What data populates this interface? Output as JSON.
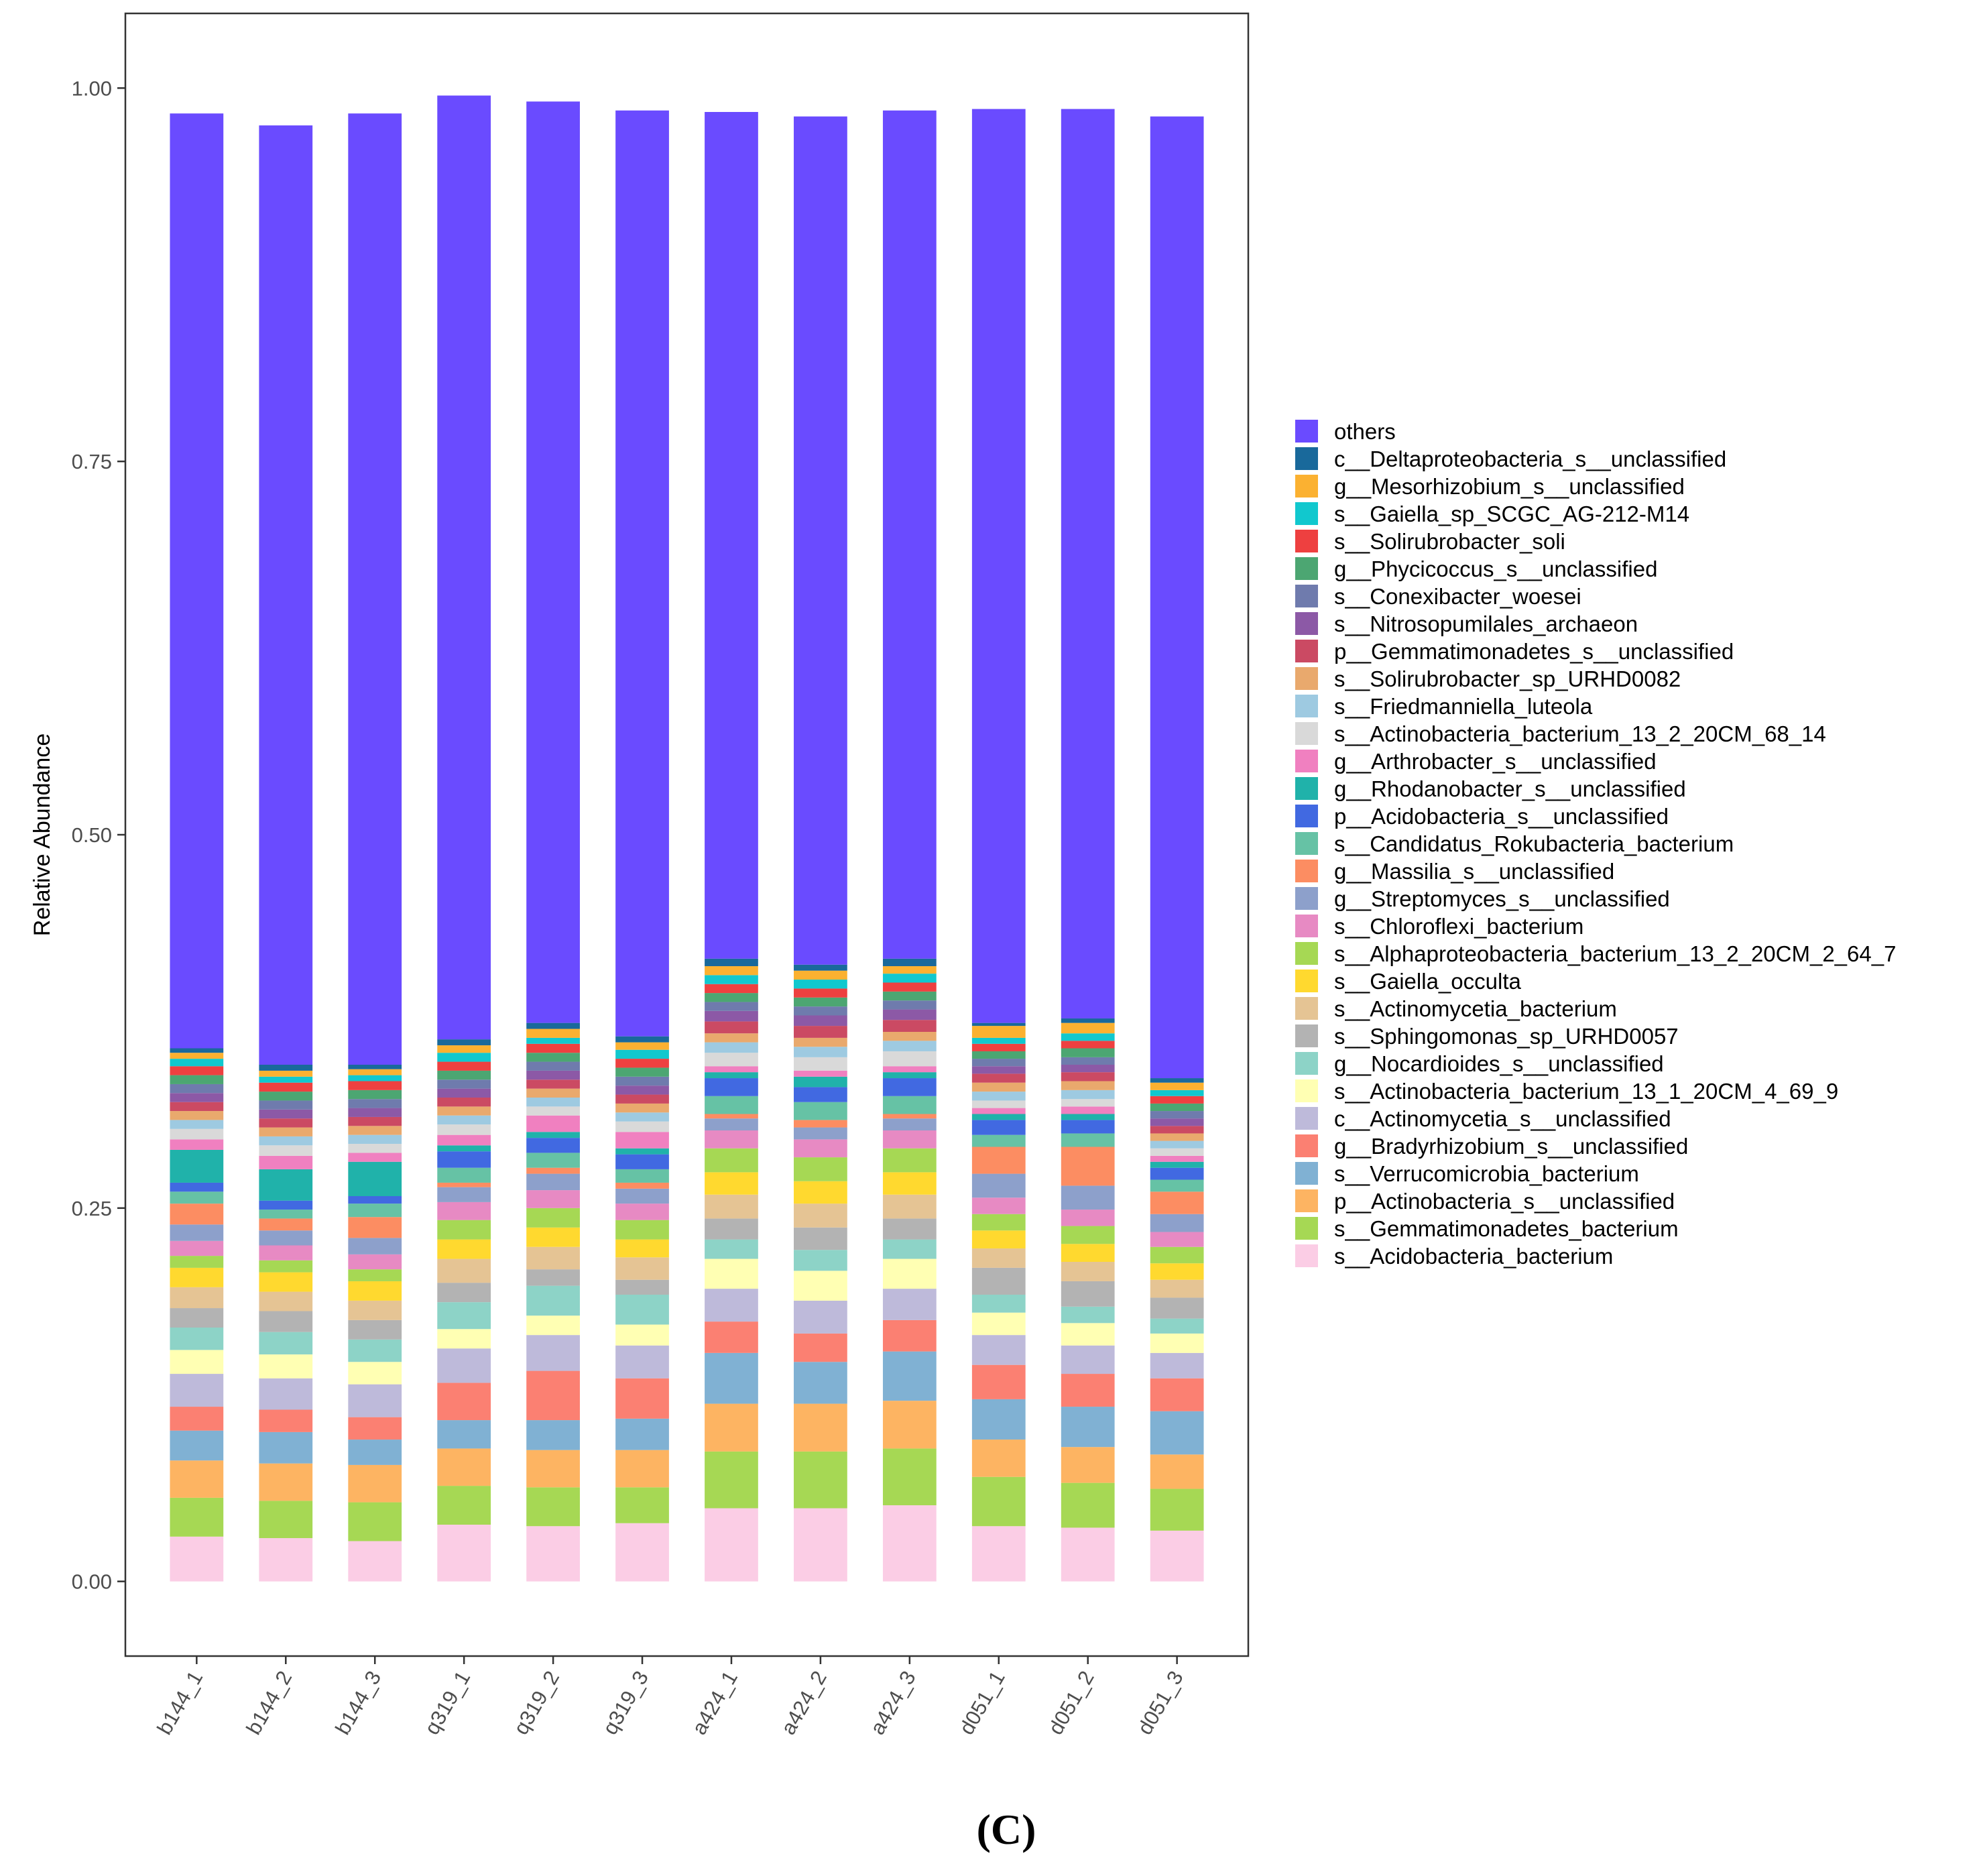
{
  "chart_data": {
    "type": "bar",
    "stacked": true,
    "ylabel": "Relative Abundance",
    "ylim": [
      -0.05,
      1.05
    ],
    "yticks": [
      "0.00",
      "0.25",
      "0.50",
      "0.75",
      "1.00"
    ],
    "grid": false,
    "legend_position": "right",
    "caption": "(C)",
    "categories": [
      "b144_1",
      "b144_2",
      "b144_3",
      "q319_1",
      "q319_2",
      "q319_3",
      "a424_1",
      "a424_2",
      "a424_3",
      "d051_1",
      "d051_2",
      "d051_3"
    ],
    "series": [
      {
        "name": "s__Acidobacteria_bacterium",
        "color": "#FBCDE5",
        "values": [
          0.03,
          0.029,
          0.027,
          0.038,
          0.037,
          0.039,
          0.049,
          0.049,
          0.051,
          0.037,
          0.036,
          0.034
        ]
      },
      {
        "name": "s__Gemmatimonadetes_bacterium",
        "color": "#A6D854",
        "values": [
          0.026,
          0.025,
          0.026,
          0.026,
          0.026,
          0.024,
          0.038,
          0.038,
          0.038,
          0.033,
          0.03,
          0.028
        ]
      },
      {
        "name": "p__Actinobacteria_s__unclassified",
        "color": "#FDB462",
        "values": [
          0.025,
          0.025,
          0.025,
          0.025,
          0.025,
          0.025,
          0.032,
          0.032,
          0.032,
          0.025,
          0.024,
          0.023
        ]
      },
      {
        "name": "s__Verrucomicrobia_bacterium",
        "color": "#80B1D3",
        "values": [
          0.02,
          0.021,
          0.017,
          0.019,
          0.02,
          0.021,
          0.034,
          0.028,
          0.033,
          0.027,
          0.027,
          0.029
        ]
      },
      {
        "name": "g__Bradyrhizobium_s__unclassified",
        "color": "#FB8072",
        "values": [
          0.016,
          0.015,
          0.015,
          0.025,
          0.033,
          0.027,
          0.021,
          0.019,
          0.021,
          0.023,
          0.022,
          0.022
        ]
      },
      {
        "name": "c__Actinomycetia_s__unclassified",
        "color": "#BEBADA",
        "values": [
          0.022,
          0.021,
          0.022,
          0.023,
          0.024,
          0.022,
          0.022,
          0.022,
          0.021,
          0.02,
          0.019,
          0.017
        ]
      },
      {
        "name": "s__Actinobacteria_bacterium_13_1_20CM_4_69_9",
        "color": "#FFFFB3",
        "values": [
          0.016,
          0.016,
          0.015,
          0.013,
          0.013,
          0.014,
          0.02,
          0.02,
          0.02,
          0.015,
          0.015,
          0.013
        ]
      },
      {
        "name": "g__Nocardioides_s__unclassified",
        "color": "#8DD3C7",
        "values": [
          0.015,
          0.015,
          0.015,
          0.018,
          0.02,
          0.02,
          0.013,
          0.014,
          0.013,
          0.012,
          0.011,
          0.01
        ]
      },
      {
        "name": "s__Sphingomonas_sp_URHD0057",
        "color": "#B3B3B3",
        "values": [
          0.013,
          0.014,
          0.013,
          0.013,
          0.011,
          0.01,
          0.014,
          0.015,
          0.014,
          0.018,
          0.017,
          0.014
        ]
      },
      {
        "name": "s__Actinomycetia_bacterium",
        "color": "#E5C494",
        "values": [
          0.014,
          0.013,
          0.013,
          0.016,
          0.015,
          0.015,
          0.016,
          0.016,
          0.016,
          0.013,
          0.013,
          0.012
        ]
      },
      {
        "name": "s__Gaiella_occulta",
        "color": "#FFD92F",
        "values": [
          0.013,
          0.013,
          0.013,
          0.013,
          0.013,
          0.012,
          0.015,
          0.015,
          0.015,
          0.012,
          0.012,
          0.011
        ]
      },
      {
        "name": "s__Alphaproteobacteria_bacterium_13_2_20CM_2_64_7",
        "color": "#A6D854",
        "values": [
          0.008,
          0.008,
          0.008,
          0.013,
          0.013,
          0.013,
          0.016,
          0.016,
          0.016,
          0.011,
          0.012,
          0.011
        ]
      },
      {
        "name": "s__Chloroflexi_bacterium",
        "color": "#E78AC3",
        "values": [
          0.01,
          0.01,
          0.01,
          0.012,
          0.012,
          0.011,
          0.012,
          0.012,
          0.012,
          0.011,
          0.011,
          0.01
        ]
      },
      {
        "name": "g__Streptomyces_s__unclassified",
        "color": "#8DA0CB",
        "values": [
          0.011,
          0.01,
          0.011,
          0.01,
          0.011,
          0.01,
          0.008,
          0.008,
          0.008,
          0.016,
          0.016,
          0.012
        ]
      },
      {
        "name": "g__Massilia_s__unclassified",
        "color": "#FC8D62",
        "values": [
          0.014,
          0.008,
          0.014,
          0.003,
          0.004,
          0.004,
          0.003,
          0.005,
          0.003,
          0.018,
          0.026,
          0.015
        ]
      },
      {
        "name": "s__Candidatus_Rokubacteria_bacterium",
        "color": "#66C2A5",
        "values": [
          0.008,
          0.006,
          0.009,
          0.01,
          0.01,
          0.009,
          0.012,
          0.012,
          0.012,
          0.008,
          0.009,
          0.008
        ]
      },
      {
        "name": "p__Acidobacteria_s__unclassified",
        "color": "#4169E1",
        "values": [
          0.006,
          0.006,
          0.005,
          0.011,
          0.01,
          0.01,
          0.012,
          0.01,
          0.012,
          0.01,
          0.009,
          0.008
        ]
      },
      {
        "name": "g__Rhodanobacter_s__unclassified",
        "color": "#20B2AA",
        "values": [
          0.022,
          0.021,
          0.023,
          0.004,
          0.004,
          0.004,
          0.004,
          0.007,
          0.004,
          0.004,
          0.004,
          0.004
        ]
      },
      {
        "name": "g__Arthrobacter_s__unclassified",
        "color": "#F080C0",
        "values": [
          0.007,
          0.009,
          0.006,
          0.007,
          0.011,
          0.011,
          0.004,
          0.004,
          0.004,
          0.004,
          0.005,
          0.004
        ]
      },
      {
        "name": "s__Actinobacteria_bacterium_13_2_20CM_68_14",
        "color": "#D9D9D9",
        "values": [
          0.007,
          0.007,
          0.006,
          0.007,
          0.006,
          0.007,
          0.009,
          0.009,
          0.01,
          0.005,
          0.005,
          0.005
        ]
      },
      {
        "name": "s__Friedmanniella_luteola",
        "color": "#9ECAE1",
        "values": [
          0.006,
          0.006,
          0.006,
          0.006,
          0.006,
          0.006,
          0.007,
          0.007,
          0.007,
          0.006,
          0.006,
          0.005
        ]
      },
      {
        "name": "s__Solirubrobacter_sp_URHD0082",
        "color": "#E9A96D",
        "values": [
          0.006,
          0.006,
          0.006,
          0.006,
          0.006,
          0.006,
          0.006,
          0.006,
          0.006,
          0.006,
          0.006,
          0.005
        ]
      },
      {
        "name": "p__Gemmatimonadetes_s__unclassified",
        "color": "#CB4A63",
        "values": [
          0.006,
          0.006,
          0.006,
          0.006,
          0.006,
          0.006,
          0.008,
          0.008,
          0.008,
          0.006,
          0.006,
          0.005
        ]
      },
      {
        "name": "s__Nitrosopumilales_archaeon",
        "color": "#8C59A6",
        "values": [
          0.006,
          0.006,
          0.006,
          0.006,
          0.006,
          0.006,
          0.007,
          0.007,
          0.007,
          0.005,
          0.005,
          0.005
        ]
      },
      {
        "name": "s__Conexibacter_woesei",
        "color": "#6F7BAD",
        "values": [
          0.006,
          0.006,
          0.006,
          0.006,
          0.006,
          0.006,
          0.006,
          0.006,
          0.006,
          0.005,
          0.005,
          0.005
        ]
      },
      {
        "name": "g__Phycicoccus_s__unclassified",
        "color": "#4CA672",
        "values": [
          0.006,
          0.006,
          0.006,
          0.006,
          0.006,
          0.006,
          0.006,
          0.006,
          0.006,
          0.005,
          0.006,
          0.005
        ]
      },
      {
        "name": "s__Solirubrobacter_soli",
        "color": "#EE4040",
        "values": [
          0.006,
          0.006,
          0.006,
          0.006,
          0.006,
          0.006,
          0.006,
          0.006,
          0.006,
          0.005,
          0.005,
          0.005
        ]
      },
      {
        "name": "s__Gaiella_sp_SCGC_AG-212-M14",
        "color": "#11C8CE",
        "values": [
          0.005,
          0.004,
          0.004,
          0.006,
          0.004,
          0.006,
          0.006,
          0.006,
          0.006,
          0.004,
          0.005,
          0.004
        ]
      },
      {
        "name": "g__Mesorhizobium_s__unclassified",
        "color": "#FBB131",
        "values": [
          0.004,
          0.004,
          0.004,
          0.005,
          0.006,
          0.005,
          0.006,
          0.006,
          0.005,
          0.008,
          0.007,
          0.005
        ]
      },
      {
        "name": "c__Deltaproteobacteria_s__unclassified",
        "color": "#19699B",
        "values": [
          0.003,
          0.004,
          0.003,
          0.004,
          0.004,
          0.004,
          0.005,
          0.004,
          0.005,
          0.002,
          0.003,
          0.003
        ]
      },
      {
        "name": "others",
        "color": "#6A4BFF",
        "values": [
          0.626,
          0.629,
          0.637,
          0.632,
          0.617,
          0.62,
          0.567,
          0.568,
          0.568,
          0.612,
          0.609,
          0.644
        ]
      }
    ]
  }
}
